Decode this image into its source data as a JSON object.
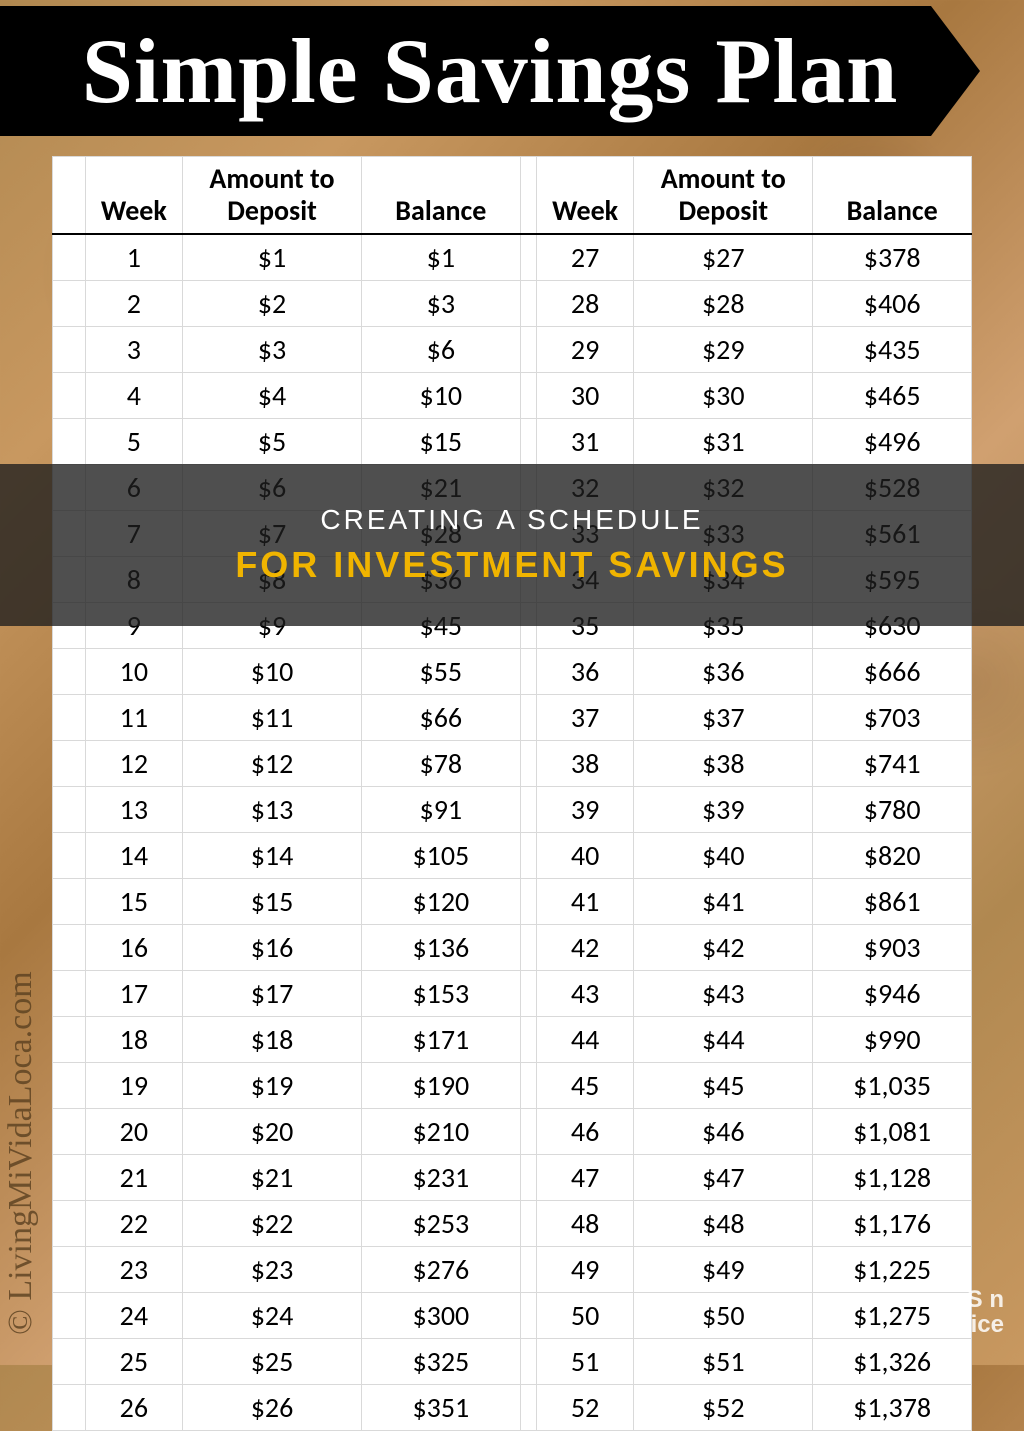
{
  "title": "Simple Savings Plan",
  "credit": "© LivingMiVidaLoca.com",
  "overlay": {
    "line1": "CREATING A SCHEDULE",
    "line2": "FOR INVESTMENT SAVINGS"
  },
  "badge": {
    "line1": "S   n",
    "line2": "   ice"
  },
  "table": {
    "headers": {
      "week": "Week",
      "deposit": "Amount to Deposit",
      "balance": "Balance"
    },
    "left": [
      {
        "w": "1",
        "d": "$1",
        "b": "$1"
      },
      {
        "w": "2",
        "d": "$2",
        "b": "$3"
      },
      {
        "w": "3",
        "d": "$3",
        "b": "$6"
      },
      {
        "w": "4",
        "d": "$4",
        "b": "$10"
      },
      {
        "w": "5",
        "d": "$5",
        "b": "$15"
      },
      {
        "w": "6",
        "d": "$6",
        "b": "$21"
      },
      {
        "w": "7",
        "d": "$7",
        "b": "$28"
      },
      {
        "w": "8",
        "d": "$8",
        "b": "$36"
      },
      {
        "w": "9",
        "d": "$9",
        "b": "$45"
      },
      {
        "w": "10",
        "d": "$10",
        "b": "$55"
      },
      {
        "w": "11",
        "d": "$11",
        "b": "$66"
      },
      {
        "w": "12",
        "d": "$12",
        "b": "$78"
      },
      {
        "w": "13",
        "d": "$13",
        "b": "$91"
      },
      {
        "w": "14",
        "d": "$14",
        "b": "$105"
      },
      {
        "w": "15",
        "d": "$15",
        "b": "$120"
      },
      {
        "w": "16",
        "d": "$16",
        "b": "$136"
      },
      {
        "w": "17",
        "d": "$17",
        "b": "$153"
      },
      {
        "w": "18",
        "d": "$18",
        "b": "$171"
      },
      {
        "w": "19",
        "d": "$19",
        "b": "$190"
      },
      {
        "w": "20",
        "d": "$20",
        "b": "$210"
      },
      {
        "w": "21",
        "d": "$21",
        "b": "$231"
      },
      {
        "w": "22",
        "d": "$22",
        "b": "$253"
      },
      {
        "w": "23",
        "d": "$23",
        "b": "$276"
      },
      {
        "w": "24",
        "d": "$24",
        "b": "$300"
      },
      {
        "w": "25",
        "d": "$25",
        "b": "$325"
      },
      {
        "w": "26",
        "d": "$26",
        "b": "$351"
      }
    ],
    "right": [
      {
        "w": "27",
        "d": "$27",
        "b": "$378"
      },
      {
        "w": "28",
        "d": "$28",
        "b": "$406"
      },
      {
        "w": "29",
        "d": "$29",
        "b": "$435"
      },
      {
        "w": "30",
        "d": "$30",
        "b": "$465"
      },
      {
        "w": "31",
        "d": "$31",
        "b": "$496"
      },
      {
        "w": "32",
        "d": "$32",
        "b": "$528"
      },
      {
        "w": "33",
        "d": "$33",
        "b": "$561"
      },
      {
        "w": "34",
        "d": "$34",
        "b": "$595"
      },
      {
        "w": "35",
        "d": "$35",
        "b": "$630"
      },
      {
        "w": "36",
        "d": "$36",
        "b": "$666"
      },
      {
        "w": "37",
        "d": "$37",
        "b": "$703"
      },
      {
        "w": "38",
        "d": "$38",
        "b": "$741"
      },
      {
        "w": "39",
        "d": "$39",
        "b": "$780"
      },
      {
        "w": "40",
        "d": "$40",
        "b": "$820"
      },
      {
        "w": "41",
        "d": "$41",
        "b": "$861"
      },
      {
        "w": "42",
        "d": "$42",
        "b": "$903"
      },
      {
        "w": "43",
        "d": "$43",
        "b": "$946"
      },
      {
        "w": "44",
        "d": "$44",
        "b": "$990"
      },
      {
        "w": "45",
        "d": "$45",
        "b": "$1,035"
      },
      {
        "w": "46",
        "d": "$46",
        "b": "$1,081"
      },
      {
        "w": "47",
        "d": "$47",
        "b": "$1,128"
      },
      {
        "w": "48",
        "d": "$48",
        "b": "$1,176"
      },
      {
        "w": "49",
        "d": "$49",
        "b": "$1,225"
      },
      {
        "w": "50",
        "d": "$50",
        "b": "$1,275"
      },
      {
        "w": "51",
        "d": "$51",
        "b": "$1,326"
      },
      {
        "w": "52",
        "d": "$52",
        "b": "$1,378"
      }
    ]
  }
}
